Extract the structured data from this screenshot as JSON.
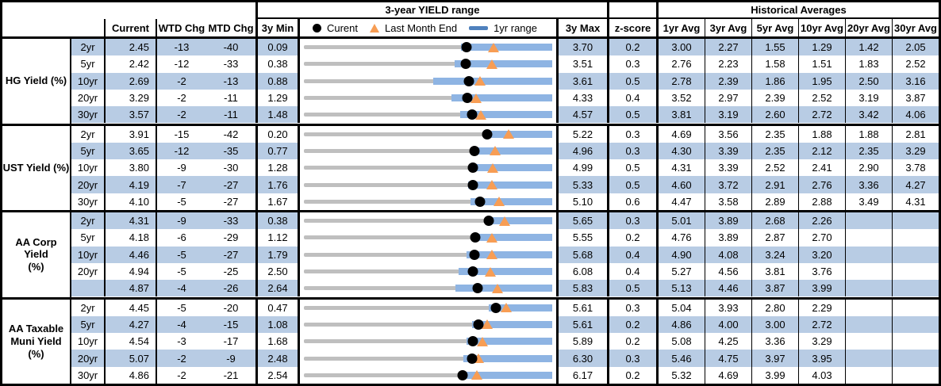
{
  "header": {
    "chart_title": "3-year YIELD range",
    "hist_title": "Historical Averages",
    "col_current": "Current",
    "col_wtd": "WTD Chg",
    "col_mtd": "MTD Chg",
    "col_3ymin": "3y Min",
    "col_3ymax": "3y Max",
    "col_zscore": "z-score",
    "avg_cols": [
      "1yr Avg",
      "3yr Avg",
      "5yr Avg",
      "10yr Avg",
      "20yr Avg",
      "30yr Avg"
    ],
    "legend": {
      "current": "Curent",
      "lme": "Last Month End",
      "range": "1yr range"
    }
  },
  "colors": {
    "band_blue": "#B8CCE4",
    "bar_blue": "#8EB4E3",
    "legend_bar_blue": "#4F81BD",
    "range_gray": "#BFBFBF",
    "triangle_orange": "#F79D54",
    "dot_black": "#000000"
  },
  "sections": [
    {
      "label": "HG Yield (%)",
      "rows": [
        {
          "tenor": "2yr",
          "current": "2.45",
          "wtd": "-13",
          "mtd": "-40",
          "min": "0.09",
          "max": "3.70",
          "z": "0.2",
          "avgs": [
            "3.00",
            "2.27",
            "1.55",
            "1.29",
            "1.42",
            "2.05"
          ]
        },
        {
          "tenor": "5yr",
          "current": "2.42",
          "wtd": "-12",
          "mtd": "-33",
          "min": "0.38",
          "max": "3.51",
          "z": "0.3",
          "avgs": [
            "2.76",
            "2.23",
            "1.58",
            "1.51",
            "1.83",
            "2.52"
          ]
        },
        {
          "tenor": "10yr",
          "current": "2.69",
          "wtd": "-2",
          "mtd": "-13",
          "min": "0.88",
          "max": "3.61",
          "z": "0.5",
          "avgs": [
            "2.78",
            "2.39",
            "1.86",
            "1.95",
            "2.50",
            "3.16"
          ]
        },
        {
          "tenor": "20yr",
          "current": "3.29",
          "wtd": "-2",
          "mtd": "-11",
          "min": "1.29",
          "max": "4.33",
          "z": "0.4",
          "avgs": [
            "3.52",
            "2.97",
            "2.39",
            "2.52",
            "3.19",
            "3.87"
          ]
        },
        {
          "tenor": "30yr",
          "current": "3.57",
          "wtd": "-2",
          "mtd": "-11",
          "min": "1.48",
          "max": "4.57",
          "z": "0.5",
          "avgs": [
            "3.81",
            "3.19",
            "2.60",
            "2.72",
            "3.42",
            "4.06"
          ]
        }
      ]
    },
    {
      "label": "UST Yield (%)",
      "rows": [
        {
          "tenor": "2yr",
          "current": "3.91",
          "wtd": "-15",
          "mtd": "-42",
          "min": "0.20",
          "max": "5.22",
          "z": "0.3",
          "avgs": [
            "4.69",
            "3.56",
            "2.35",
            "1.88",
            "1.88",
            "2.81"
          ]
        },
        {
          "tenor": "5yr",
          "current": "3.65",
          "wtd": "-12",
          "mtd": "-35",
          "min": "0.77",
          "max": "4.96",
          "z": "0.3",
          "avgs": [
            "4.30",
            "3.39",
            "2.35",
            "2.12",
            "2.35",
            "3.29"
          ]
        },
        {
          "tenor": "10yr",
          "current": "3.80",
          "wtd": "-9",
          "mtd": "-30",
          "min": "1.28",
          "max": "4.99",
          "z": "0.5",
          "avgs": [
            "4.31",
            "3.39",
            "2.52",
            "2.41",
            "2.90",
            "3.78"
          ]
        },
        {
          "tenor": "20yr",
          "current": "4.19",
          "wtd": "-7",
          "mtd": "-27",
          "min": "1.76",
          "max": "5.33",
          "z": "0.5",
          "avgs": [
            "4.60",
            "3.72",
            "2.91",
            "2.76",
            "3.36",
            "4.27"
          ]
        },
        {
          "tenor": "30yr",
          "current": "4.10",
          "wtd": "-5",
          "mtd": "-27",
          "min": "1.67",
          "max": "5.10",
          "z": "0.6",
          "avgs": [
            "4.47",
            "3.58",
            "2.89",
            "2.88",
            "3.49",
            "4.31"
          ]
        }
      ]
    },
    {
      "label": "AA Corp Yield\n(%)",
      "rows": [
        {
          "tenor": "2yr",
          "current": "4.31",
          "wtd": "-9",
          "mtd": "-33",
          "min": "0.38",
          "max": "5.65",
          "z": "0.3",
          "avgs": [
            "5.01",
            "3.89",
            "2.68",
            "2.26",
            "",
            ""
          ]
        },
        {
          "tenor": "5yr",
          "current": "4.18",
          "wtd": "-6",
          "mtd": "-29",
          "min": "1.12",
          "max": "5.55",
          "z": "0.2",
          "avgs": [
            "4.76",
            "3.89",
            "2.87",
            "2.70",
            "",
            ""
          ]
        },
        {
          "tenor": "10yr",
          "current": "4.46",
          "wtd": "-5",
          "mtd": "-27",
          "min": "1.79",
          "max": "5.68",
          "z": "0.4",
          "avgs": [
            "4.90",
            "4.08",
            "3.24",
            "3.20",
            "",
            ""
          ]
        },
        {
          "tenor": "20yr",
          "current": "4.94",
          "wtd": "-5",
          "mtd": "-25",
          "min": "2.50",
          "max": "6.08",
          "z": "0.4",
          "avgs": [
            "5.27",
            "4.56",
            "3.81",
            "3.76",
            "",
            ""
          ]
        },
        {
          "tenor": "",
          "current": "4.87",
          "wtd": "-4",
          "mtd": "-26",
          "min": "2.64",
          "max": "5.83",
          "z": "0.5",
          "avgs": [
            "5.13",
            "4.46",
            "3.87",
            "3.99",
            "",
            ""
          ]
        }
      ]
    },
    {
      "label": "AA Taxable\nMuni Yield\n(%)",
      "rows": [
        {
          "tenor": "2yr",
          "current": "4.45",
          "wtd": "-5",
          "mtd": "-20",
          "min": "0.47",
          "max": "5.61",
          "z": "0.3",
          "avgs": [
            "5.04",
            "3.93",
            "2.80",
            "2.29",
            "",
            ""
          ]
        },
        {
          "tenor": "5yr",
          "current": "4.27",
          "wtd": "-4",
          "mtd": "-15",
          "min": "1.08",
          "max": "5.61",
          "z": "0.2",
          "avgs": [
            "4.86",
            "4.00",
            "3.00",
            "2.72",
            "",
            ""
          ]
        },
        {
          "tenor": "10yr",
          "current": "4.54",
          "wtd": "-3",
          "mtd": "-17",
          "min": "1.68",
          "max": "5.89",
          "z": "0.2",
          "avgs": [
            "5.08",
            "4.25",
            "3.36",
            "3.29",
            "",
            ""
          ]
        },
        {
          "tenor": "20yr",
          "current": "5.07",
          "wtd": "-2",
          "mtd": "-9",
          "min": "2.48",
          "max": "6.30",
          "z": "0.3",
          "avgs": [
            "5.46",
            "4.75",
            "3.97",
            "3.95",
            "",
            ""
          ]
        },
        {
          "tenor": "30yr",
          "current": "4.86",
          "wtd": "-2",
          "mtd": "-21",
          "min": "2.54",
          "max": "6.17",
          "z": "0.2",
          "avgs": [
            "5.32",
            "4.69",
            "3.99",
            "4.03",
            "",
            ""
          ]
        }
      ]
    }
  ],
  "chart_data": {
    "type": "range_bar",
    "title": "3-year YIELD range",
    "legend": [
      "Curent",
      "Last Month End",
      "1yr range"
    ],
    "x_unit": "yield_percent",
    "note": "Gray line spans 3y min to 3y max; blue bar is 1yr range; black dot = current; orange triangle = last month end",
    "rows": [
      {
        "series": "HG Yield (%)",
        "tenor": "2yr",
        "min_3y": 0.09,
        "max_3y": 3.7,
        "current": 2.45,
        "last_month_end": 2.85,
        "range_1y": [
          2.37,
          3.7
        ]
      },
      {
        "series": "HG Yield (%)",
        "tenor": "5yr",
        "min_3y": 0.38,
        "max_3y": 3.51,
        "current": 2.42,
        "last_month_end": 2.75,
        "range_1y": [
          2.28,
          3.51
        ]
      },
      {
        "series": "HG Yield (%)",
        "tenor": "10yr",
        "min_3y": 0.88,
        "max_3y": 3.61,
        "current": 2.69,
        "last_month_end": 2.82,
        "range_1y": [
          2.3,
          3.61
        ]
      },
      {
        "series": "HG Yield (%)",
        "tenor": "20yr",
        "min_3y": 1.29,
        "max_3y": 4.33,
        "current": 3.29,
        "last_month_end": 3.4,
        "range_1y": [
          3.1,
          4.33
        ]
      },
      {
        "series": "HG Yield (%)",
        "tenor": "30yr",
        "min_3y": 1.48,
        "max_3y": 4.57,
        "current": 3.57,
        "last_month_end": 3.68,
        "range_1y": [
          3.42,
          4.57
        ]
      },
      {
        "series": "UST Yield (%)",
        "tenor": "2yr",
        "min_3y": 0.2,
        "max_3y": 5.22,
        "current": 3.91,
        "last_month_end": 4.33,
        "range_1y": [
          3.85,
          5.22
        ]
      },
      {
        "series": "UST Yield (%)",
        "tenor": "5yr",
        "min_3y": 0.77,
        "max_3y": 4.96,
        "current": 3.65,
        "last_month_end": 4.0,
        "range_1y": [
          3.62,
          4.96
        ]
      },
      {
        "series": "UST Yield (%)",
        "tenor": "10yr",
        "min_3y": 1.28,
        "max_3y": 4.99,
        "current": 3.8,
        "last_month_end": 4.1,
        "range_1y": [
          3.78,
          4.99
        ]
      },
      {
        "series": "UST Yield (%)",
        "tenor": "20yr",
        "min_3y": 1.76,
        "max_3y": 5.33,
        "current": 4.19,
        "last_month_end": 4.46,
        "range_1y": [
          4.12,
          5.33
        ]
      },
      {
        "series": "UST Yield (%)",
        "tenor": "30yr",
        "min_3y": 1.67,
        "max_3y": 5.1,
        "current": 4.1,
        "last_month_end": 4.37,
        "range_1y": [
          3.97,
          5.1
        ]
      },
      {
        "series": "AA Corp Yield (%)",
        "tenor": "2yr",
        "min_3y": 0.38,
        "max_3y": 5.65,
        "current": 4.31,
        "last_month_end": 4.64,
        "range_1y": [
          4.29,
          5.65
        ]
      },
      {
        "series": "AA Corp Yield (%)",
        "tenor": "5yr",
        "min_3y": 1.12,
        "max_3y": 5.55,
        "current": 4.18,
        "last_month_end": 4.47,
        "range_1y": [
          4.14,
          5.55
        ]
      },
      {
        "series": "AA Corp Yield (%)",
        "tenor": "10yr",
        "min_3y": 1.79,
        "max_3y": 5.68,
        "current": 4.46,
        "last_month_end": 4.73,
        "range_1y": [
          4.34,
          5.68
        ]
      },
      {
        "series": "AA Corp Yield (%)",
        "tenor": "20yr",
        "min_3y": 2.5,
        "max_3y": 6.08,
        "current": 4.94,
        "last_month_end": 5.19,
        "range_1y": [
          4.73,
          6.08
        ]
      },
      {
        "series": "AA Corp Yield (%)",
        "tenor": "30yr",
        "min_3y": 2.64,
        "max_3y": 5.83,
        "current": 4.87,
        "last_month_end": 5.13,
        "range_1y": [
          4.59,
          5.83
        ]
      },
      {
        "series": "AA Taxable Muni Yield (%)",
        "tenor": "2yr",
        "min_3y": 0.47,
        "max_3y": 5.61,
        "current": 4.45,
        "last_month_end": 4.65,
        "range_1y": [
          4.29,
          5.61
        ]
      },
      {
        "series": "AA Taxable Muni Yield (%)",
        "tenor": "5yr",
        "min_3y": 1.08,
        "max_3y": 5.61,
        "current": 4.27,
        "last_month_end": 4.42,
        "range_1y": [
          4.15,
          5.61
        ]
      },
      {
        "series": "AA Taxable Muni Yield (%)",
        "tenor": "10yr",
        "min_3y": 1.68,
        "max_3y": 5.89,
        "current": 4.54,
        "last_month_end": 4.71,
        "range_1y": [
          4.44,
          5.89
        ]
      },
      {
        "series": "AA Taxable Muni Yield (%)",
        "tenor": "20yr",
        "min_3y": 2.48,
        "max_3y": 6.3,
        "current": 5.07,
        "last_month_end": 5.16,
        "range_1y": [
          4.93,
          6.3
        ]
      },
      {
        "series": "AA Taxable Muni Yield (%)",
        "tenor": "30yr",
        "min_3y": 2.54,
        "max_3y": 6.17,
        "current": 4.86,
        "last_month_end": 5.07,
        "range_1y": [
          4.82,
          6.17
        ]
      }
    ]
  }
}
